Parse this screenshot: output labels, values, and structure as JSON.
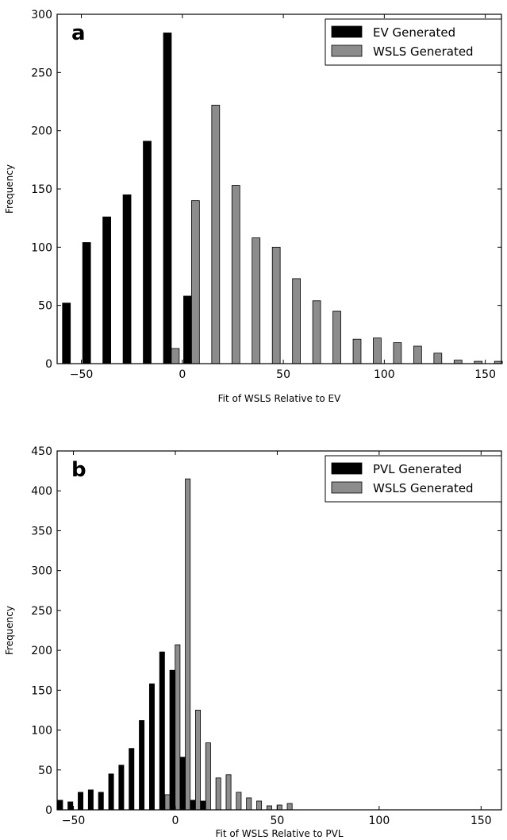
{
  "chart_data": [
    {
      "type": "bar",
      "panel_letter": "a",
      "xlabel": "Fit of WSLS Relative to EV",
      "ylabel": "Frequency",
      "xlim": [
        -62,
        158
      ],
      "ylim": [
        0,
        300
      ],
      "xticks": [
        -50,
        0,
        50,
        100,
        150
      ],
      "xtick_labels": [
        "−50",
        "0",
        "50",
        "100",
        "150"
      ],
      "yticks": [
        0,
        50,
        100,
        150,
        200,
        250,
        300
      ],
      "bar_width": 3.9,
      "legend_position": "top-right",
      "grid": false,
      "series": [
        {
          "name": "EV Generated",
          "color": "#000000",
          "x": [
            -57.4,
            -47.4,
            -37.4,
            -27.4,
            -17.4,
            -7.4,
            2.6
          ],
          "values": [
            52,
            104,
            126,
            145,
            191,
            284,
            58
          ]
        },
        {
          "name": "WSLS Generated",
          "color": "#8c8c8c",
          "x": [
            -3.5,
            6.5,
            16.5,
            26.5,
            36.5,
            46.5,
            56.5,
            66.5,
            76.5,
            86.5,
            96.5,
            106.5,
            116.5,
            126.5,
            136.5,
            146.5,
            156.5
          ],
          "values": [
            13,
            140,
            222,
            153,
            108,
            100,
            73,
            54,
            45,
            21,
            22,
            18,
            15,
            9,
            3,
            2,
            2
          ]
        }
      ]
    },
    {
      "type": "bar",
      "panel_letter": "b",
      "xlabel": "Fit of WSLS Relative to PVL",
      "ylabel": "Frequency",
      "xlim": [
        -58,
        160
      ],
      "ylim": [
        0,
        450
      ],
      "xticks": [
        -50,
        0,
        50,
        100,
        150
      ],
      "xtick_labels": [
        "−50",
        "0",
        "50",
        "100",
        "150"
      ],
      "yticks": [
        0,
        50,
        100,
        150,
        200,
        250,
        300,
        350,
        400,
        450
      ],
      "bar_width": 2.4,
      "legend_position": "top-right",
      "grid": false,
      "series": [
        {
          "name": "PVL Generated",
          "color": "#000000",
          "x": [
            -56.5,
            -51.5,
            -46.5,
            -41.5,
            -36.5,
            -31.5,
            -26.5,
            -21.5,
            -16.5,
            -11.5,
            -6.5,
            -1.5,
            3.5,
            8.5,
            13.5
          ],
          "values": [
            12,
            10,
            22,
            25,
            22,
            45,
            56,
            77,
            112,
            158,
            198,
            175,
            66,
            12,
            11
          ]
        },
        {
          "name": "WSLS Generated",
          "color": "#8c8c8c",
          "x": [
            -3.9,
            1.1,
            6.1,
            11.1,
            16.1,
            21.1,
            26.1,
            31.1,
            36.1,
            41.1,
            46.1,
            51.1,
            56.1
          ],
          "values": [
            19,
            207,
            415,
            125,
            84,
            40,
            44,
            22,
            15,
            11,
            5,
            6,
            8
          ]
        }
      ]
    }
  ]
}
